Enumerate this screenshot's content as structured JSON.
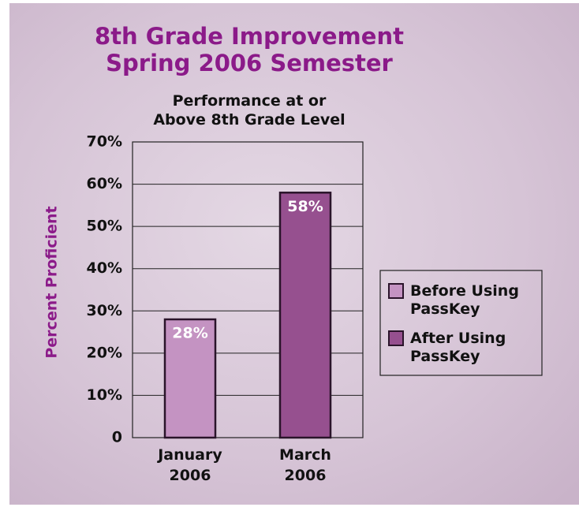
{
  "chart_data": {
    "type": "bar",
    "title": [
      "8th Grade Improvement",
      "Spring 2006 Semester"
    ],
    "subtitle": [
      "Performance at or",
      "Above 8th Grade Level"
    ],
    "y_label": "Percent Proficient",
    "categories": [
      "January 2006",
      "March 2006"
    ],
    "values": [
      28,
      58
    ],
    "value_labels": [
      "28%",
      "58%"
    ],
    "colors": [
      "#c493c2",
      "#96508f"
    ],
    "legend": [
      "Before Using PassKey",
      "After Using PassKey"
    ],
    "ylim": [
      0,
      70
    ],
    "yticks": [
      0,
      {
        "value": 10,
        "label": "10%"
      },
      {
        "value": 20,
        "label": "20%"
      },
      {
        "value": 30,
        "label": "30%"
      },
      {
        "value": 40,
        "label": "40%"
      },
      {
        "value": 50,
        "label": "50%"
      },
      {
        "value": 60,
        "label": "60%"
      },
      {
        "value": 70,
        "label": "70%"
      }
    ],
    "grid": true
  }
}
